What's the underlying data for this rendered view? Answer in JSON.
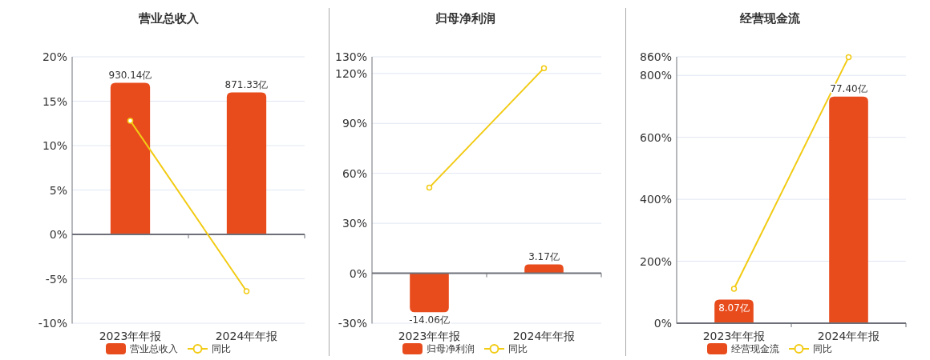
{
  "chart_data": [
    {
      "type": "bar",
      "title": "营业总收入",
      "categories": [
        "2023年年报",
        "2024年年报"
      ],
      "series": [
        {
          "name": "营业总收入",
          "axis": "y2",
          "color": "#e84c1d",
          "values": [
            930.14,
            871.33
          ],
          "value_labels": [
            "930.14亿",
            "871.33亿"
          ]
        },
        {
          "name": "同比",
          "type": "line",
          "color": "#f2cb14",
          "marker": "circle",
          "values": [
            12.8,
            -6.4
          ]
        }
      ],
      "ylim": [
        -10,
        20
      ],
      "yticks": [
        {
          "value": -10,
          "label": "-10%"
        },
        {
          "value": -5,
          "label": "-5%"
        },
        {
          "value": 0,
          "label": "0%"
        },
        {
          "value": 5,
          "label": "5%"
        },
        {
          "value": 10,
          "label": "10%"
        },
        {
          "value": 15,
          "label": "15%"
        },
        {
          "value": 20,
          "label": "20%"
        }
      ],
      "y2lim": [
        -545,
        1090
      ],
      "grid": "y",
      "legend": "bottom"
    },
    {
      "type": "bar",
      "title": "归母净利润",
      "categories": [
        "2023年年报",
        "2024年年报"
      ],
      "series": [
        {
          "name": "归母净利润",
          "axis": "y2",
          "color": "#e84c1d",
          "values": [
            -14.06,
            3.17
          ],
          "value_labels": [
            "-14.06亿",
            "3.17亿"
          ]
        },
        {
          "name": "同比",
          "type": "line",
          "color": "#f2cb14",
          "marker": "circle",
          "values": [
            51.5,
            123.2
          ]
        }
      ],
      "ylim": [
        -30,
        130
      ],
      "yticks": [
        {
          "value": -30,
          "label": "-30%"
        },
        {
          "value": 0,
          "label": "0%"
        },
        {
          "value": 30,
          "label": "30%"
        },
        {
          "value": 60,
          "label": "60%"
        },
        {
          "value": 90,
          "label": "90%"
        },
        {
          "value": 120,
          "label": "120%"
        },
        {
          "value": 130,
          "label": "130%"
        }
      ],
      "y2lim": [
        -18,
        78
      ],
      "grid": "y",
      "legend": "bottom"
    },
    {
      "type": "bar",
      "title": "经营现金流",
      "categories": [
        "2023年年报",
        "2024年年报"
      ],
      "series": [
        {
          "name": "经营现金流",
          "axis": "y2",
          "color": "#e84c1d",
          "values": [
            8.07,
            77.4
          ],
          "value_labels": [
            "8.07亿",
            "77.40亿"
          ]
        },
        {
          "name": "同比",
          "type": "line",
          "color": "#f2cb14",
          "marker": "circle",
          "values": [
            111,
            859
          ]
        }
      ],
      "ylim": [
        0,
        860
      ],
      "yticks": [
        {
          "value": 0,
          "label": "0%"
        },
        {
          "value": 200,
          "label": "200%"
        },
        {
          "value": 400,
          "label": "400%"
        },
        {
          "value": 600,
          "label": "600%"
        },
        {
          "value": 800,
          "label": "800%"
        },
        {
          "value": 860,
          "label": "860%"
        }
      ],
      "y2lim": [
        0,
        91
      ],
      "grid": "y",
      "legend": "bottom"
    }
  ]
}
